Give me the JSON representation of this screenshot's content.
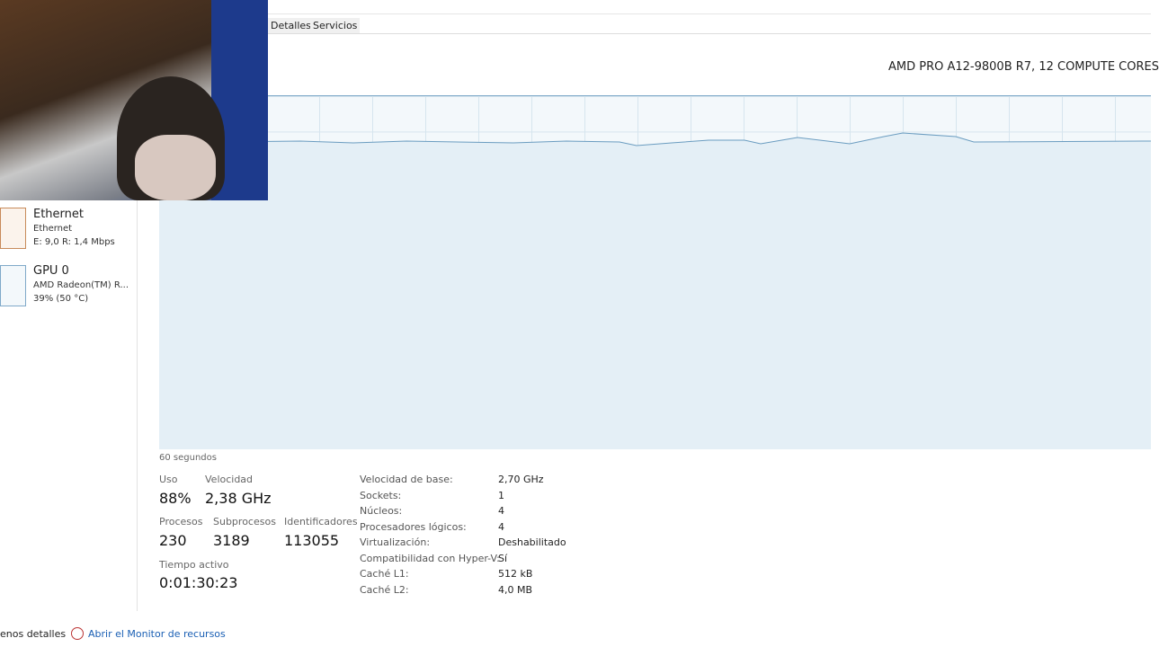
{
  "tabs": [
    "Detalles",
    "Servicios"
  ],
  "cpu_name": "AMD PRO A12-9800B R7, 12 COMPUTE CORES",
  "sidebar": [
    {
      "title": "Ethernet",
      "subtitle": "Ethernet",
      "detail": "E: 9,0 R: 1,4 Mbps"
    },
    {
      "title": "GPU 0",
      "subtitle": "AMD Radeon(TM) R...",
      "detail": "39%  (50 °C)"
    }
  ],
  "graph_time": "60 segundos",
  "stats": [
    {
      "label": "Uso",
      "value": "88%"
    },
    {
      "label": "Velocidad",
      "value": "2,38 GHz"
    },
    {
      "label": "Procesos",
      "value": "230"
    },
    {
      "label": "Subprocesos",
      "value": "3189"
    },
    {
      "label": "Identificadores",
      "value": "113055"
    },
    {
      "label": "Tiempo activo",
      "value": "0:01:30:23"
    }
  ],
  "specs": [
    [
      "Velocidad de base:",
      "2,70 GHz"
    ],
    [
      "Sockets:",
      "1"
    ],
    [
      "Núcleos:",
      "4"
    ],
    [
      "Procesadores lógicos:",
      "4"
    ],
    [
      "Virtualización:",
      "Deshabilitado"
    ],
    [
      "Compatibilidad con Hyper-V:",
      "Sí"
    ],
    [
      "Caché L1:",
      "512 kB"
    ],
    [
      "Caché L2:",
      "4,0 MB"
    ]
  ],
  "footer": {
    "less": "enos detalles",
    "monitor": "Abrir el Monitor de recursos"
  }
}
